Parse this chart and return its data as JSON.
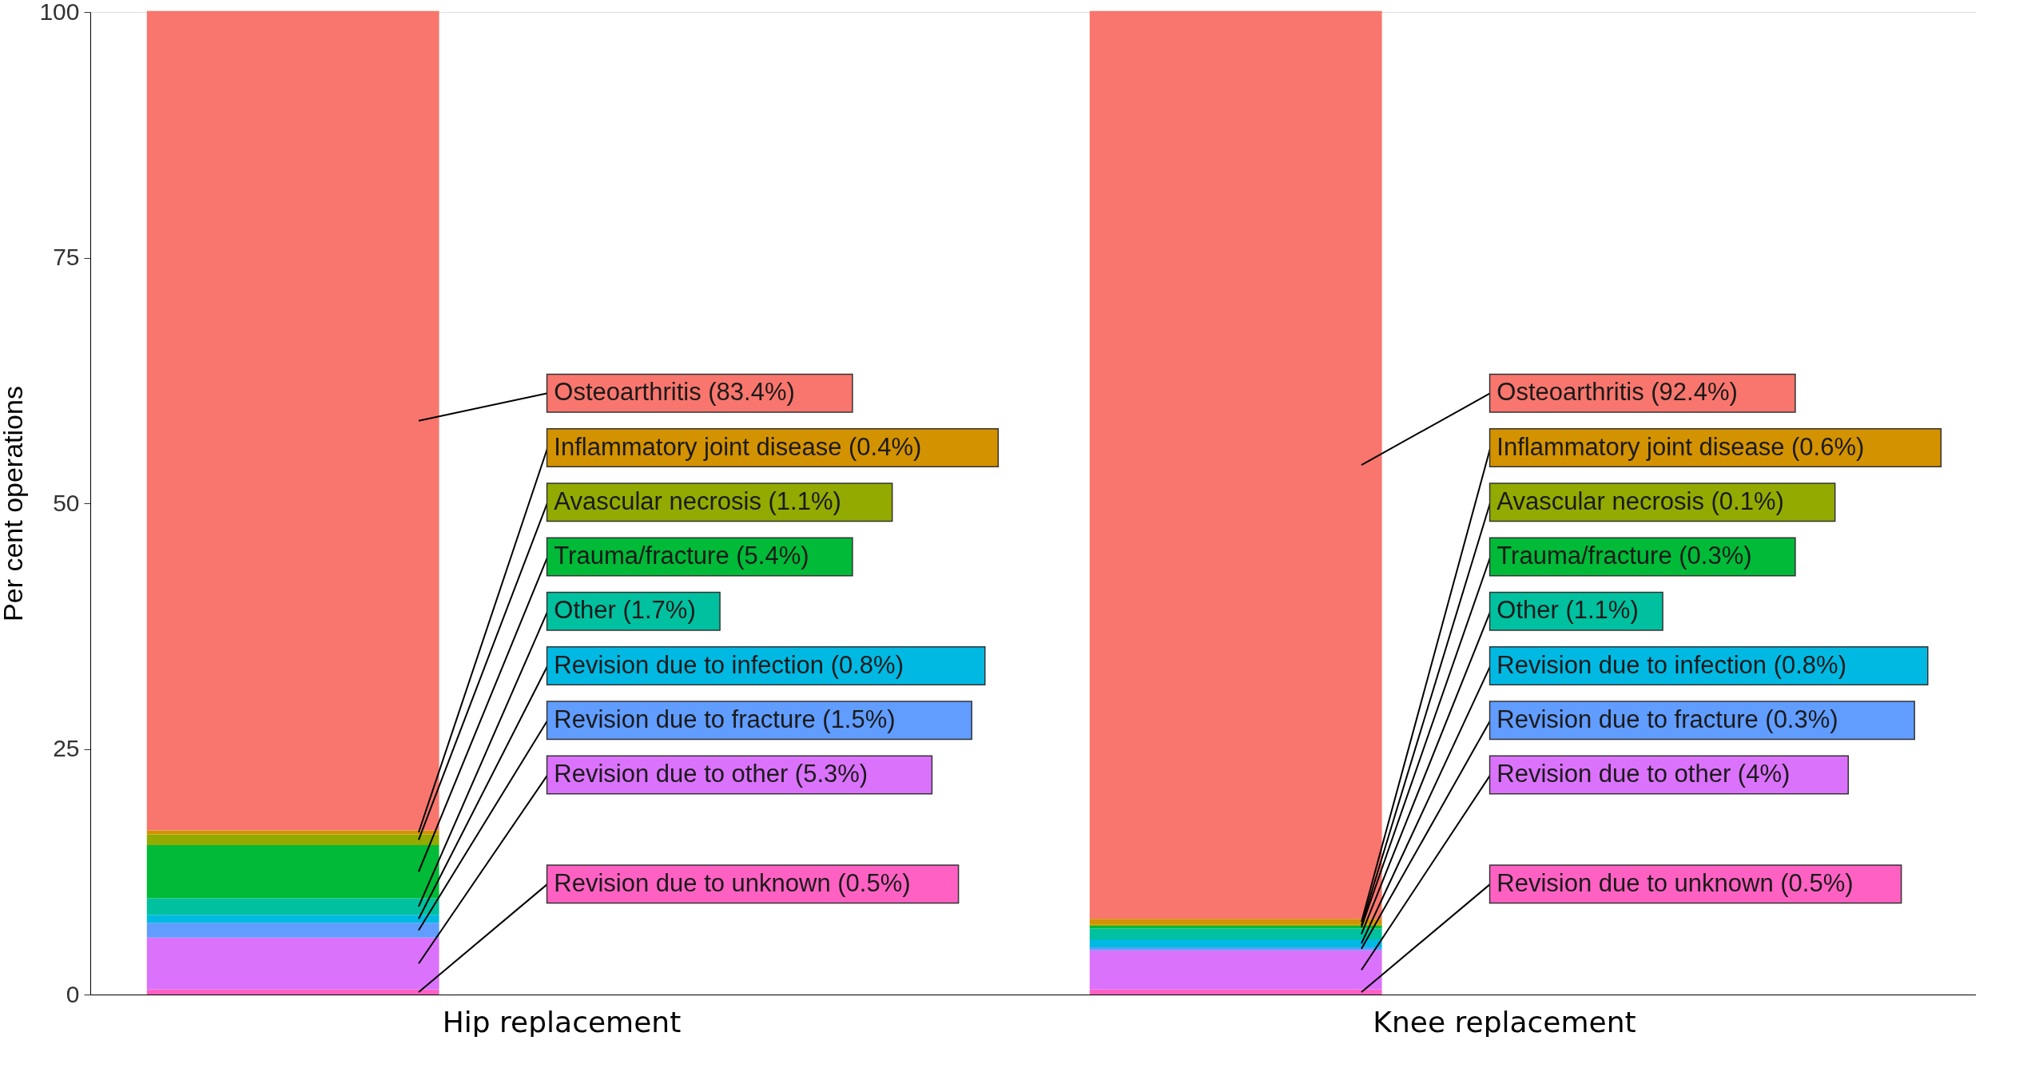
{
  "chart_data": {
    "type": "bar",
    "stacked": true,
    "categories": [
      "Hip replacement",
      "Knee replacement"
    ],
    "ylabel": "Per cent operations",
    "ylim": [
      0,
      100
    ],
    "yticks": [
      0,
      25,
      50,
      75,
      100
    ],
    "grid": false,
    "legend": false,
    "series": [
      {
        "name": "Revision due to unknown (0.5%)",
        "color": "#ff61c3",
        "values": [
          0.5,
          null
        ]
      },
      {
        "name": "Revision due to other (5.3%)",
        "color": "#db72fb",
        "values": [
          5.3,
          null
        ]
      },
      {
        "name": "Revision due to fracture (1.5%)",
        "color": "#619cff",
        "values": [
          1.5,
          null
        ]
      },
      {
        "name": "Revision due to infection (0.8%)",
        "color": "#00b9e3",
        "values": [
          0.8,
          null
        ]
      },
      {
        "name": "Other (1.7%)",
        "color": "#00c19f",
        "values": [
          1.7,
          null
        ]
      },
      {
        "name": "Trauma/fracture (5.4%)",
        "color": "#00ba38",
        "values": [
          5.4,
          null
        ]
      },
      {
        "name": "Avascular necrosis (1.1%)",
        "color": "#93aa00",
        "values": [
          1.1,
          null
        ]
      },
      {
        "name": "Inflammatory joint disease (0.4%)",
        "color": "#d39200",
        "values": [
          0.4,
          null
        ]
      },
      {
        "name": "Osteoarthritis (83.4%)",
        "color": "#f8766d",
        "values": [
          83.4,
          null
        ]
      },
      {
        "name": "Revision due to unknown (0.5%)",
        "color": "#ff61c3",
        "values": [
          null,
          0.5
        ]
      },
      {
        "name": "Revision due to other (4%)",
        "color": "#db72fb",
        "values": [
          null,
          4
        ]
      },
      {
        "name": "Revision due to fracture (0.3%)",
        "color": "#619cff",
        "values": [
          null,
          0.3
        ]
      },
      {
        "name": "Revision due to infection (0.8%)",
        "color": "#00b9e3",
        "values": [
          null,
          0.8
        ]
      },
      {
        "name": "Other (1.1%)",
        "color": "#00c19f",
        "values": [
          null,
          1.1
        ]
      },
      {
        "name": "Trauma/fracture (0.3%)",
        "color": "#00ba38",
        "values": [
          null,
          0.3
        ]
      },
      {
        "name": "Avascular necrosis (0.1%)",
        "color": "#93aa00",
        "values": [
          null,
          0.1
        ]
      },
      {
        "name": "Inflammatory joint disease (0.6%)",
        "color": "#d39200",
        "values": [
          null,
          0.6
        ]
      },
      {
        "name": "Osteoarthritis (92.4%)",
        "color": "#f8766d",
        "values": [
          null,
          92.4
        ]
      }
    ]
  }
}
